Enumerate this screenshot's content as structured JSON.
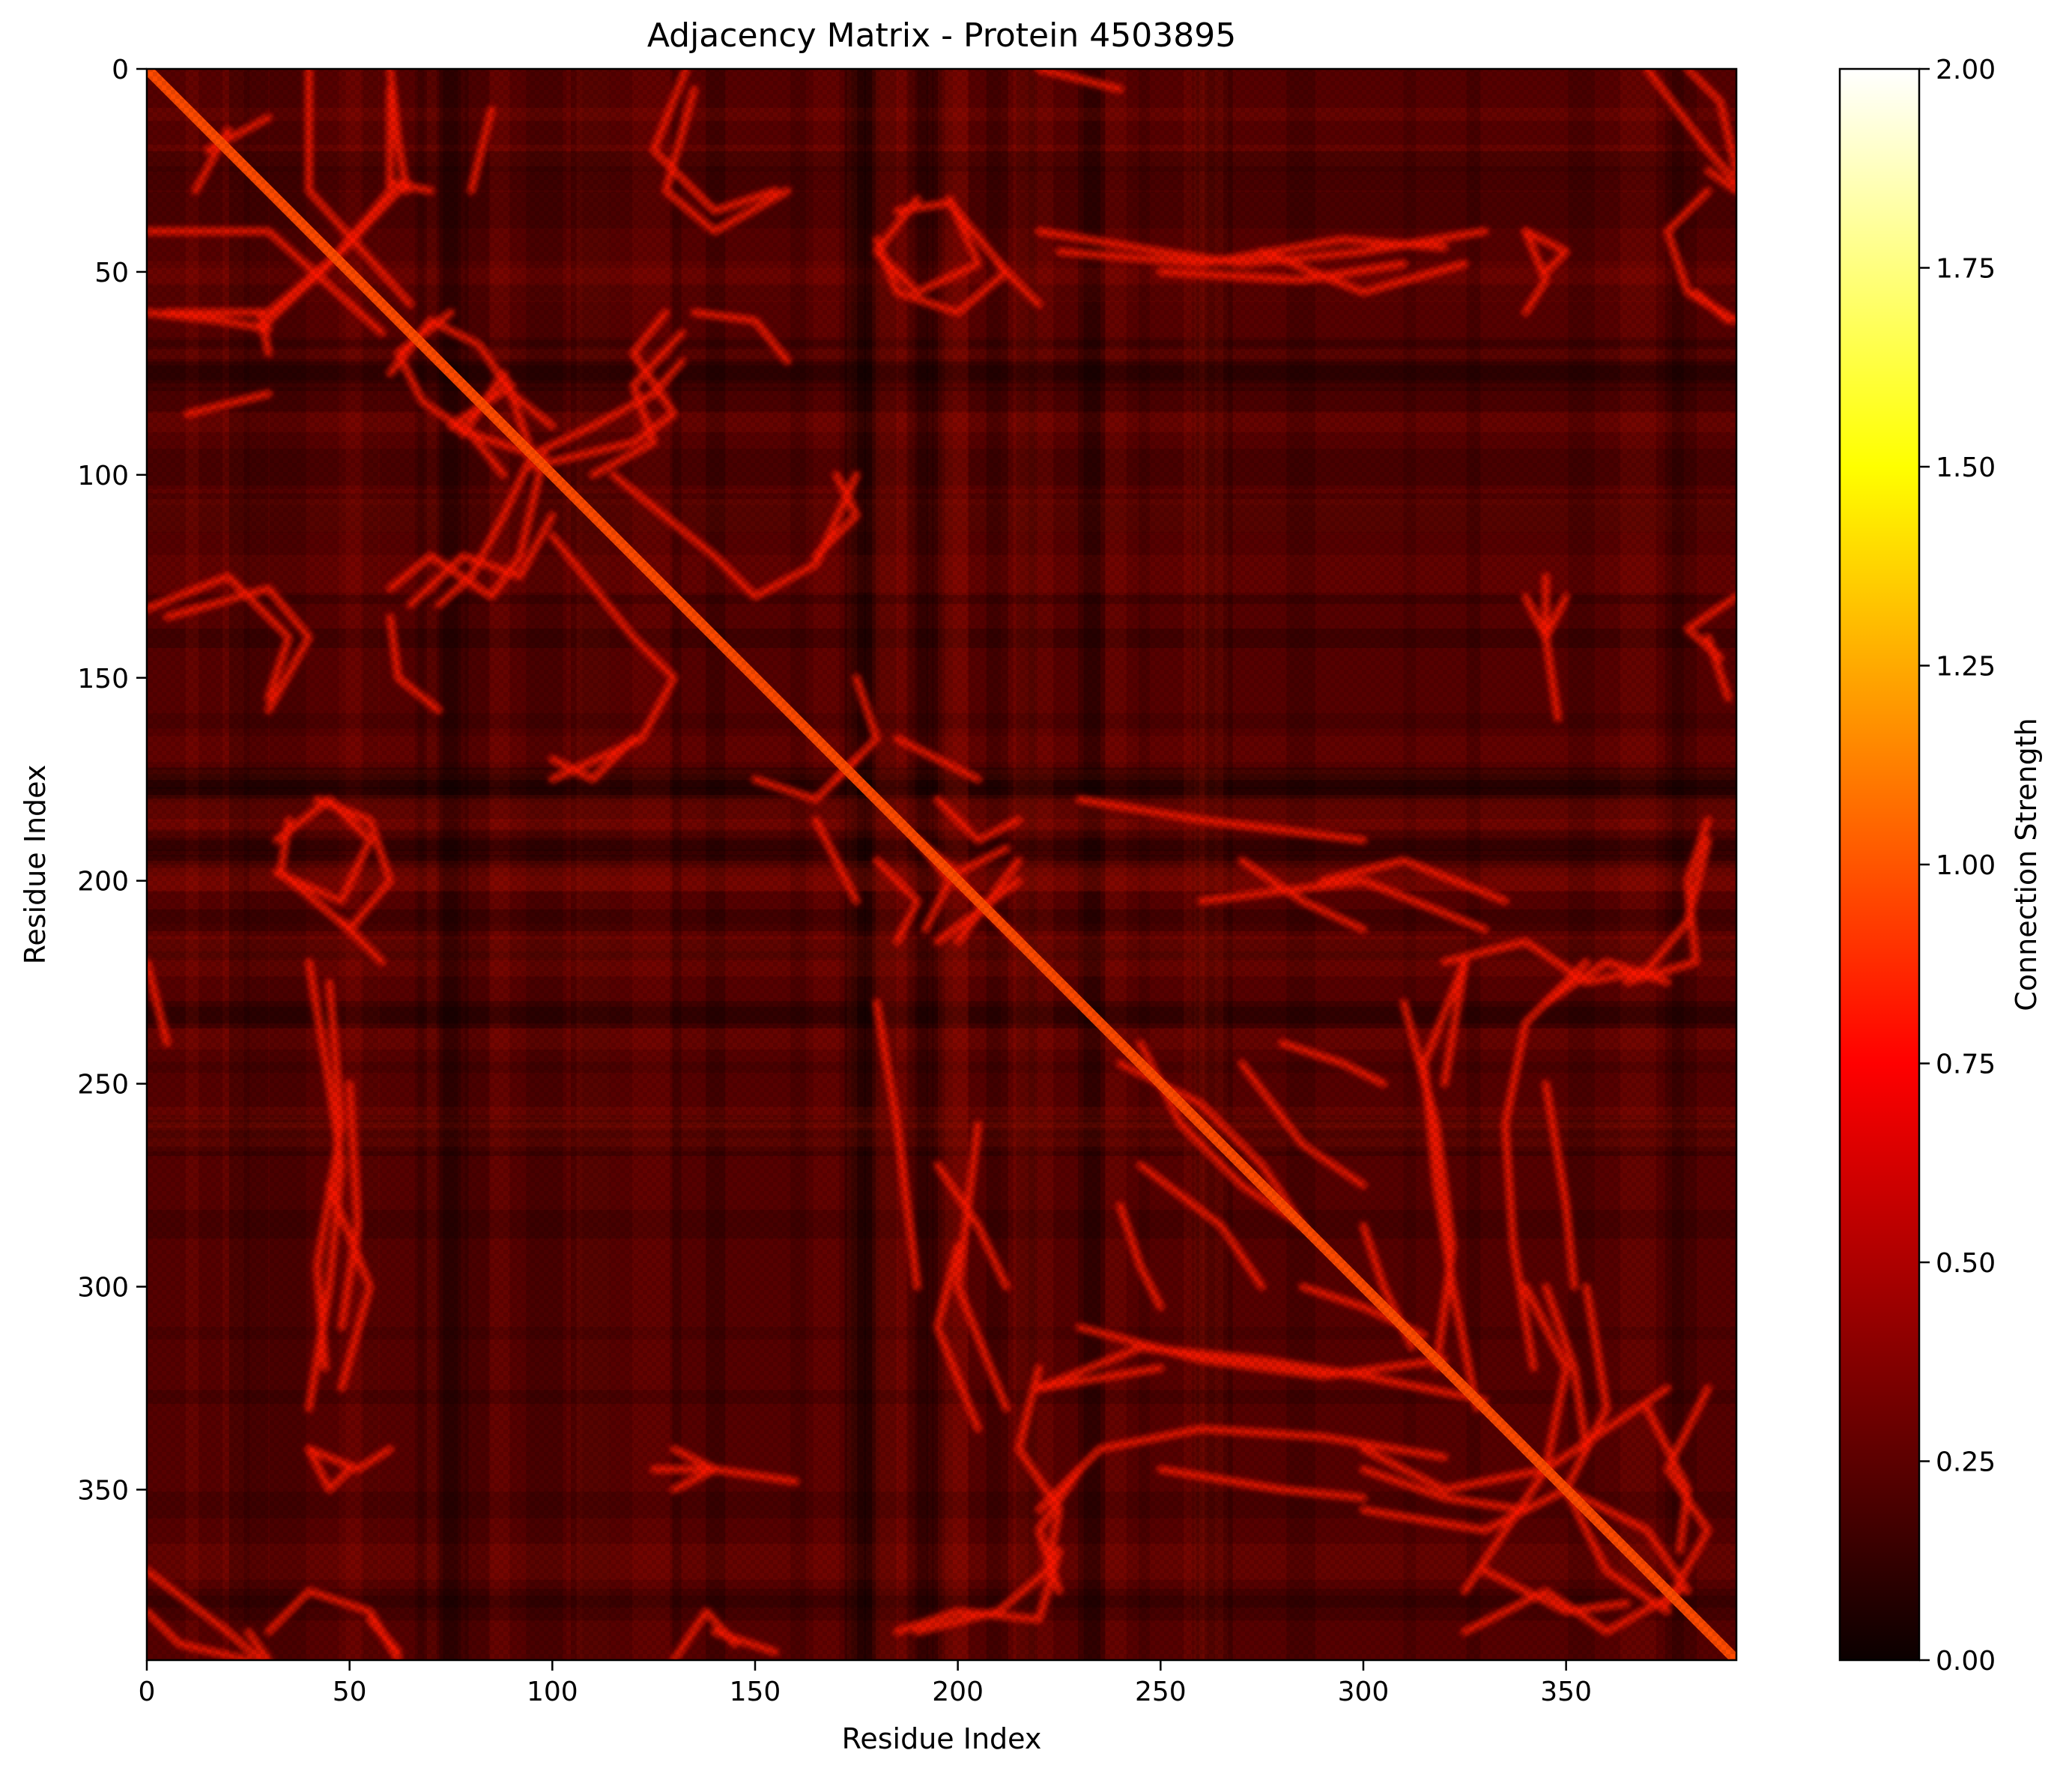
{
  "chart_data": {
    "type": "heatmap",
    "title": "Adjacency Matrix - Protein 4503895",
    "xlabel": "Residue Index",
    "ylabel": "Residue Index",
    "n_residues": 392,
    "xlim": [
      0,
      392
    ],
    "ylim": [
      392,
      0
    ],
    "x_ticks": [
      0,
      50,
      100,
      150,
      200,
      250,
      300,
      350
    ],
    "y_ticks": [
      0,
      50,
      100,
      150,
      200,
      250,
      300,
      350
    ],
    "x_tick_labels": [
      "0",
      "50",
      "100",
      "150",
      "200",
      "250",
      "300",
      "350"
    ],
    "y_tick_labels": [
      "0",
      "50",
      "100",
      "150",
      "200",
      "250",
      "300",
      "350"
    ],
    "colormap": "hot",
    "colorbar": {
      "label": "Connection Strength",
      "vmin": 0.0,
      "vmax": 2.0,
      "ticks": [
        0.0,
        0.25,
        0.5,
        0.75,
        1.0,
        1.25,
        1.5,
        1.75,
        2.0
      ],
      "tick_labels": [
        "0.00",
        "0.25",
        "0.50",
        "0.75",
        "1.00",
        "1.25",
        "1.50",
        "1.75",
        "2.00"
      ]
    },
    "background_value": 0.22,
    "diagonal_value": 0.95,
    "contact_value": 0.8,
    "contact_segments": [
      [
        [
          40,
          0
        ],
        [
          40,
          30
        ],
        [
          65,
          58
        ]
      ],
      [
        [
          60,
          5
        ],
        [
          60,
          30
        ],
        [
          45,
          48
        ],
        [
          28,
          64
        ]
      ],
      [
        [
          20,
          15
        ],
        [
          12,
          30
        ]
      ],
      [
        [
          0,
          60
        ],
        [
          18,
          62
        ],
        [
          30,
          64
        ]
      ],
      [
        [
          70,
          30
        ],
        [
          60,
          28
        ]
      ],
      [
        [
          85,
          10
        ],
        [
          80,
          30
        ]
      ],
      [
        [
          135,
          5
        ],
        [
          128,
          30
        ],
        [
          140,
          40
        ],
        [
          158,
          30
        ]
      ],
      [
        [
          128,
          60
        ],
        [
          120,
          70
        ],
        [
          130,
          85
        ],
        [
          120,
          92
        ],
        [
          95,
          98
        ]
      ],
      [
        [
          60,
          75
        ],
        [
          70,
          62
        ],
        [
          82,
          68
        ],
        [
          90,
          80
        ],
        [
          100,
          88
        ]
      ],
      [
        [
          78,
          90
        ],
        [
          88,
          75
        ],
        [
          95,
          95
        ],
        [
          88,
          110
        ],
        [
          80,
          125
        ],
        [
          72,
          132
        ]
      ],
      [
        [
          65,
          132
        ],
        [
          78,
          120
        ],
        [
          92,
          125
        ],
        [
          100,
          110
        ]
      ],
      [
        [
          60,
          135
        ],
        [
          62,
          150
        ],
        [
          72,
          158
        ]
      ],
      [
        [
          0,
          133
        ],
        [
          20,
          125
        ],
        [
          35,
          140
        ],
        [
          30,
          155
        ]
      ],
      [
        [
          100,
          115
        ],
        [
          120,
          140
        ],
        [
          130,
          150
        ],
        [
          122,
          165
        ],
        [
          100,
          175
        ]
      ],
      [
        [
          170,
          100
        ],
        [
          175,
          110
        ],
        [
          165,
          120
        ]
      ],
      [
        [
          175,
          150
        ],
        [
          180,
          165
        ],
        [
          170,
          175
        ]
      ],
      [
        [
          32,
          190
        ],
        [
          45,
          180
        ],
        [
          55,
          190
        ],
        [
          48,
          205
        ],
        [
          32,
          198
        ]
      ],
      [
        [
          185,
          35
        ],
        [
          198,
          33
        ],
        [
          212,
          50
        ],
        [
          200,
          60
        ],
        [
          185,
          55
        ],
        [
          180,
          42
        ]
      ],
      [
        [
          225,
          45
        ],
        [
          260,
          48
        ],
        [
          295,
          42
        ],
        [
          320,
          44
        ]
      ],
      [
        [
          275,
          45
        ],
        [
          300,
          55
        ],
        [
          325,
          48
        ]
      ],
      [
        [
          210,
          48
        ],
        [
          220,
          58
        ]
      ],
      [
        [
          185,
          165
        ],
        [
          195,
          170
        ],
        [
          205,
          175
        ]
      ],
      [
        [
          180,
          195
        ],
        [
          190,
          205
        ],
        [
          185,
          215
        ]
      ],
      [
        [
          190,
          190
        ],
        [
          200,
          198
        ],
        [
          212,
          192
        ]
      ],
      [
        [
          195,
          215
        ],
        [
          215,
          200
        ]
      ],
      [
        [
          200,
          200
        ],
        [
          215,
          215
        ]
      ],
      [
        [
          230,
          180
        ],
        [
          260,
          185
        ],
        [
          300,
          190
        ]
      ],
      [
        [
          260,
          205
        ],
        [
          300,
          200
        ],
        [
          330,
          212
        ]
      ],
      [
        [
          320,
          220
        ],
        [
          340,
          215
        ],
        [
          355,
          225
        ],
        [
          370,
          222
        ],
        [
          380,
          210
        ],
        [
          385,
          190
        ]
      ],
      [
        [
          345,
          230
        ],
        [
          360,
          220
        ],
        [
          375,
          225
        ]
      ],
      [
        [
          310,
          230
        ],
        [
          318,
          260
        ],
        [
          322,
          290
        ],
        [
          318,
          320
        ]
      ],
      [
        [
          325,
          220
        ],
        [
          320,
          250
        ]
      ],
      [
        [
          40,
          220
        ],
        [
          45,
          250
        ],
        [
          48,
          270
        ],
        [
          45,
          300
        ],
        [
          40,
          330
        ]
      ],
      [
        [
          50,
          250
        ],
        [
          52,
          285
        ],
        [
          48,
          310
        ]
      ],
      [
        [
          0,
          220
        ],
        [
          5,
          240
        ]
      ],
      [
        [
          195,
          270
        ],
        [
          205,
          285
        ],
        [
          212,
          300
        ]
      ],
      [
        [
          200,
          290
        ],
        [
          195,
          310
        ],
        [
          205,
          335
        ]
      ],
      [
        [
          245,
          240
        ],
        [
          255,
          260
        ],
        [
          270,
          275
        ],
        [
          285,
          285
        ]
      ],
      [
        [
          245,
          270
        ],
        [
          265,
          285
        ],
        [
          275,
          300
        ]
      ],
      [
        [
          280,
          240
        ],
        [
          295,
          245
        ],
        [
          305,
          250
        ]
      ],
      [
        [
          285,
          300
        ],
        [
          300,
          305
        ],
        [
          315,
          312
        ]
      ],
      [
        [
          220,
          325
        ],
        [
          245,
          315
        ],
        [
          275,
          318
        ],
        [
          300,
          322
        ],
        [
          330,
          328
        ]
      ],
      [
        [
          220,
          355
        ],
        [
          235,
          340
        ],
        [
          260,
          335
        ],
        [
          290,
          337
        ],
        [
          320,
          342
        ]
      ],
      [
        [
          300,
          345
        ],
        [
          320,
          352
        ],
        [
          340,
          355
        ]
      ],
      [
        [
          340,
          300
        ],
        [
          350,
          320
        ],
        [
          345,
          345
        ],
        [
          335,
          360
        ],
        [
          325,
          375
        ]
      ],
      [
        [
          355,
          300
        ],
        [
          360,
          330
        ],
        [
          350,
          350
        ],
        [
          360,
          370
        ],
        [
          375,
          380
        ]
      ],
      [
        [
          325,
          385
        ],
        [
          345,
          375
        ],
        [
          360,
          385
        ],
        [
          378,
          375
        ]
      ],
      [
        [
          370,
          330
        ],
        [
          380,
          350
        ],
        [
          378,
          365
        ]
      ],
      [
        [
          0,
          380
        ],
        [
          8,
          388
        ],
        [
          25,
          392
        ]
      ],
      [
        [
          30,
          385
        ],
        [
          40,
          375
        ],
        [
          55,
          380
        ],
        [
          62,
          392
        ]
      ],
      [
        [
          130,
          392
        ],
        [
          138,
          380
        ],
        [
          145,
          388
        ]
      ],
      [
        [
          185,
          385
        ],
        [
          200,
          380
        ],
        [
          220,
          382
        ],
        [
          225,
          365
        ]
      ],
      [
        [
          125,
          345
        ],
        [
          140,
          345
        ],
        [
          160,
          348
        ]
      ],
      [
        [
          40,
          340
        ],
        [
          52,
          345
        ],
        [
          60,
          340
        ]
      ],
      [
        [
          250,
          345
        ],
        [
          280,
          350
        ],
        [
          300,
          352
        ]
      ],
      [
        [
          385,
          25
        ],
        [
          392,
          30
        ]
      ],
      [
        [
          370,
          0
        ],
        [
          385,
          20
        ],
        [
          392,
          28
        ]
      ],
      [
        [
          382,
          55
        ],
        [
          390,
          62
        ]
      ],
      [
        [
          385,
          140
        ],
        [
          390,
          155
        ]
      ],
      [
        [
          340,
          130
        ],
        [
          345,
          140
        ],
        [
          350,
          130
        ]
      ],
      [
        [
          340,
          40
        ],
        [
          350,
          45
        ],
        [
          345,
          50
        ]
      ]
    ]
  }
}
